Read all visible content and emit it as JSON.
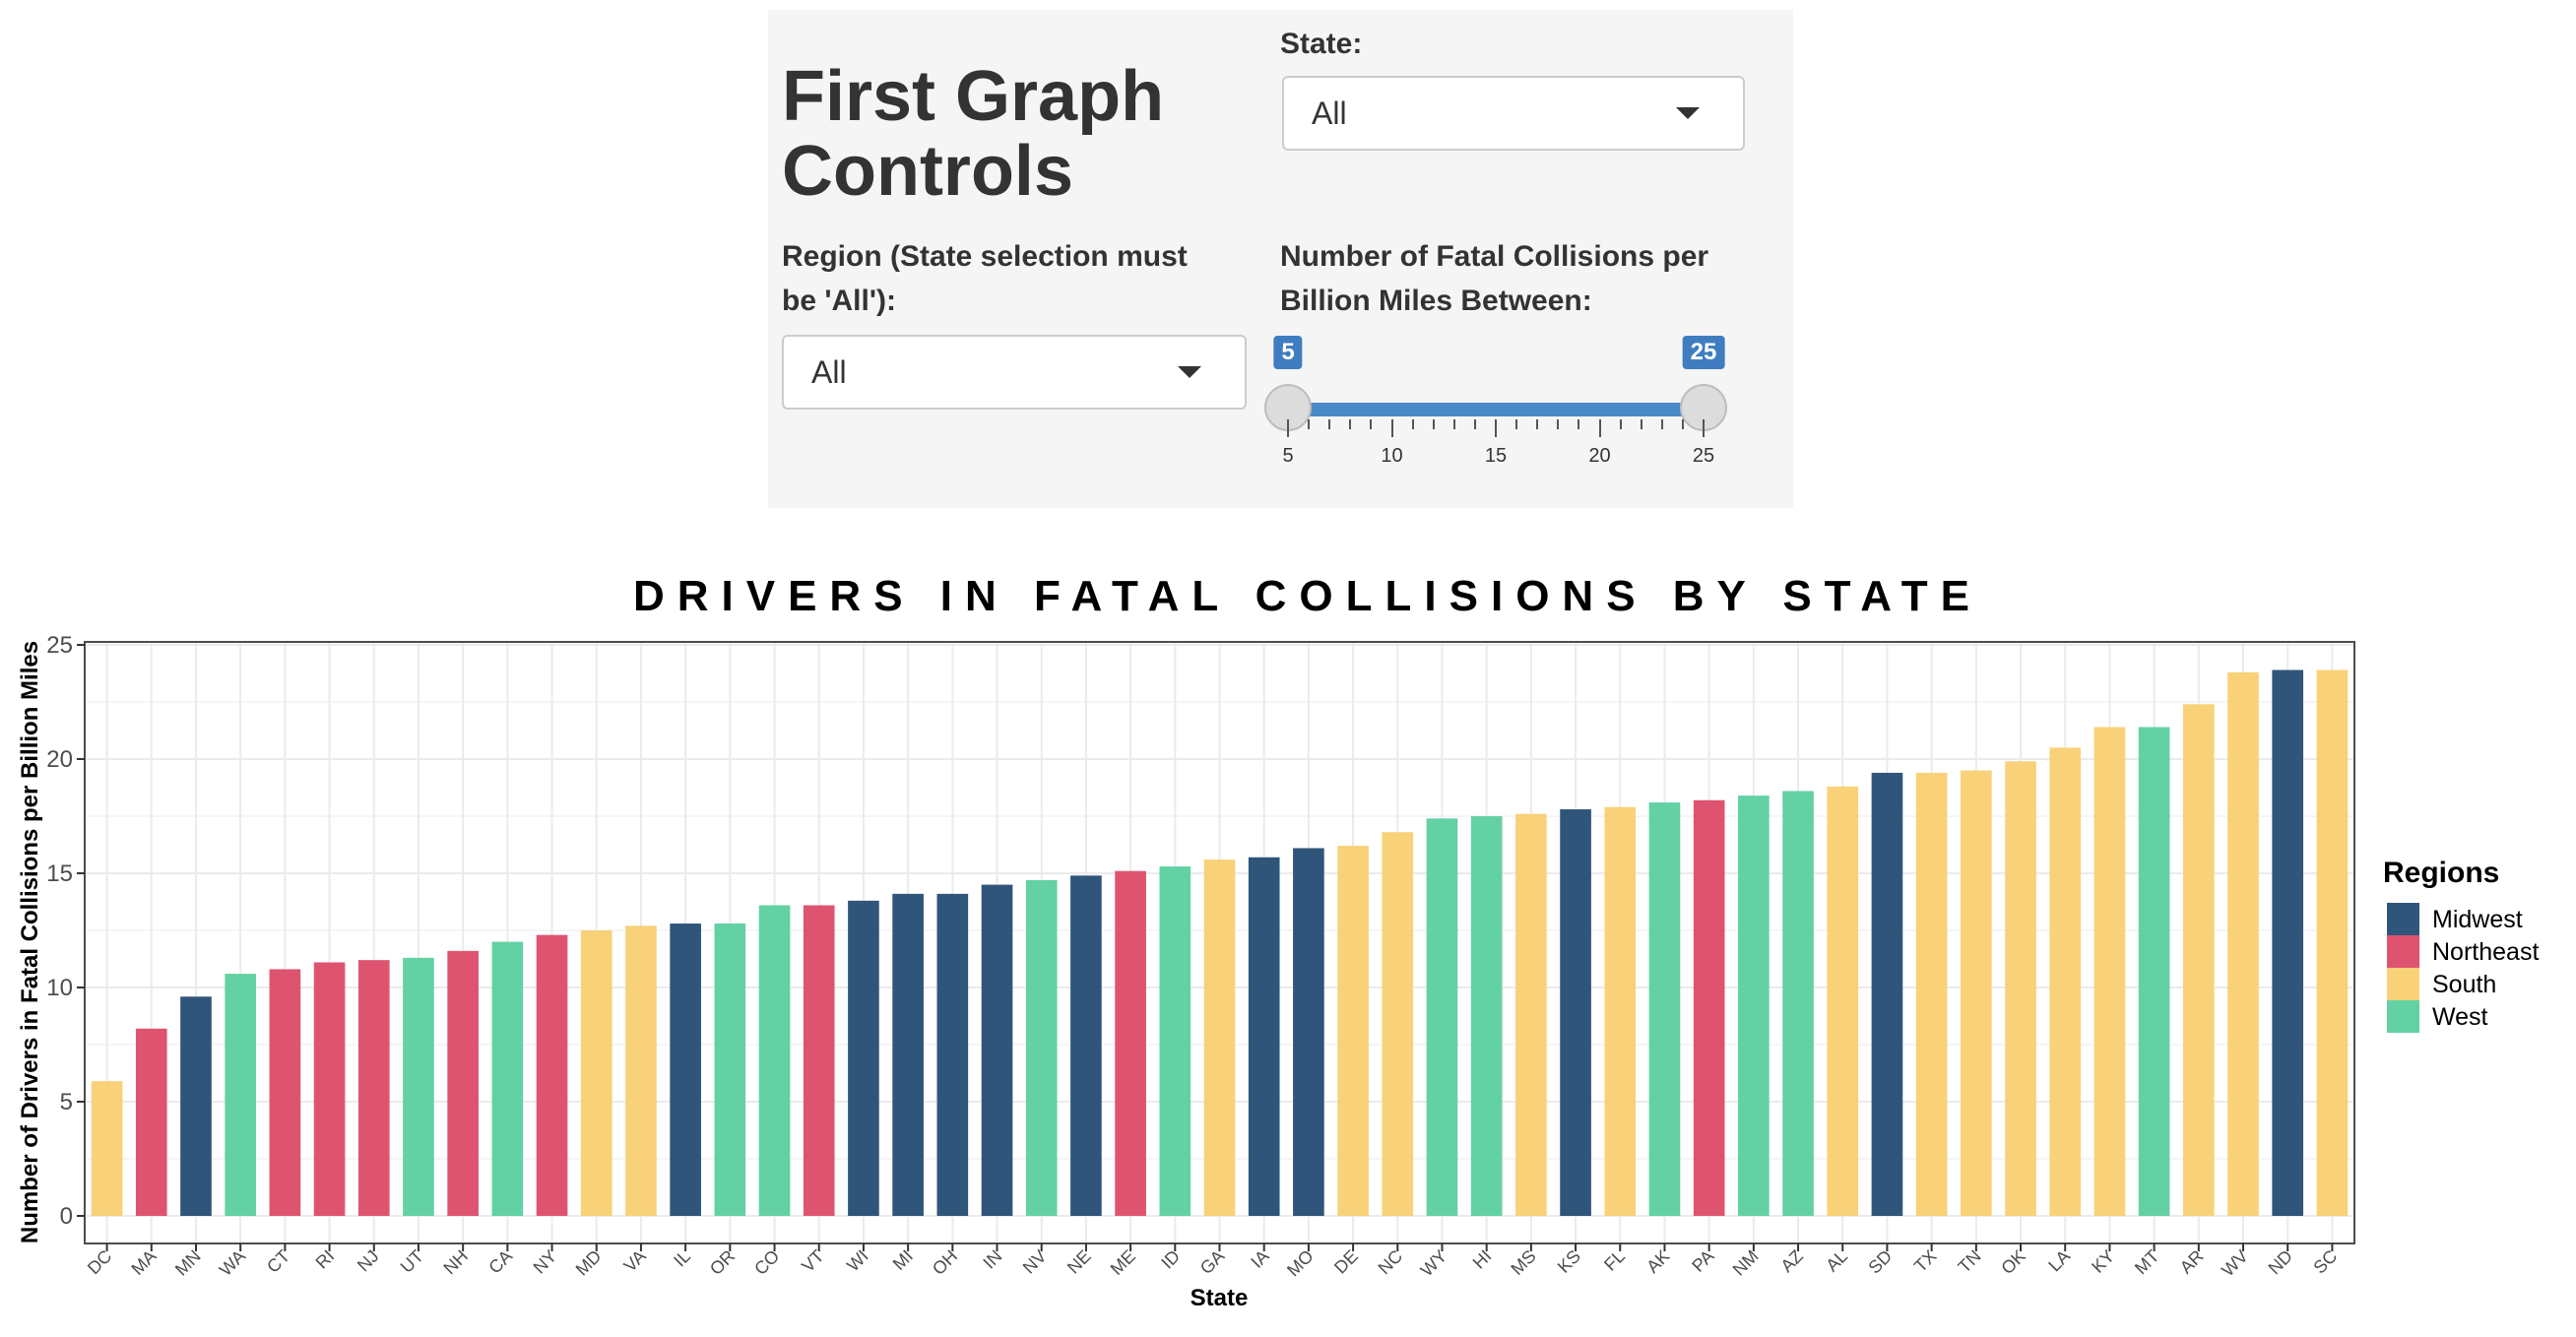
{
  "controls": {
    "title_line1": "First Graph",
    "title_line2": "Controls",
    "state_label": "State:",
    "state_value": "All",
    "region_label_line1": "Region (State selection must",
    "region_label_line2": "be 'All'):",
    "region_value": "All",
    "range_label_line1": "Number of Fatal Collisions per",
    "range_label_line2": "Billion Miles Between:",
    "range_min": 5,
    "range_max": 25,
    "range_low": "5",
    "range_high": "25",
    "range_tick_labels": [
      "5",
      "10",
      "15",
      "20",
      "25"
    ],
    "dropdown_icon": "caret-down-icon"
  },
  "chart_data": {
    "type": "bar",
    "title": "DRIVERS IN FATAL COLLISIONS BY STATE",
    "xlabel": "State",
    "ylabel": "Number of Drivers in Fatal Collisions per Billion Miles",
    "ylim": [
      0,
      25
    ],
    "yticks": [
      "0",
      "5",
      "10",
      "15",
      "20",
      "25"
    ],
    "grid": true,
    "legend_title": "Regions",
    "legend_position": "right",
    "legend": [
      {
        "name": "Midwest",
        "color": "#30557a"
      },
      {
        "name": "Northeast",
        "color": "#de5470"
      },
      {
        "name": "South",
        "color": "#f8d179"
      },
      {
        "name": "West",
        "color": "#63d1a4"
      }
    ],
    "categories": [
      "DC",
      "MA",
      "MN",
      "WA",
      "CT",
      "RI",
      "NJ",
      "UT",
      "NH",
      "CA",
      "NY",
      "MD",
      "VA",
      "IL",
      "OR",
      "CO",
      "VT",
      "WI",
      "MI",
      "OH",
      "IN",
      "NV",
      "NE",
      "ME",
      "ID",
      "GA",
      "IA",
      "MO",
      "DE",
      "NC",
      "WY",
      "HI",
      "MS",
      "KS",
      "FL",
      "AK",
      "PA",
      "NM",
      "AZ",
      "AL",
      "SD",
      "TX",
      "TN",
      "OK",
      "LA",
      "KY",
      "MT",
      "AR",
      "WV",
      "ND",
      "SC"
    ],
    "values": [
      5.9,
      8.2,
      9.6,
      10.6,
      10.8,
      11.1,
      11.2,
      11.3,
      11.6,
      12.0,
      12.3,
      12.5,
      12.7,
      12.8,
      12.8,
      13.6,
      13.6,
      13.8,
      14.1,
      14.1,
      14.5,
      14.7,
      14.9,
      15.1,
      15.3,
      15.6,
      15.7,
      16.1,
      16.2,
      16.8,
      17.4,
      17.5,
      17.6,
      17.8,
      17.9,
      18.1,
      18.2,
      18.4,
      18.6,
      18.8,
      19.4,
      19.4,
      19.5,
      19.9,
      20.5,
      21.4,
      21.4,
      22.4,
      23.8,
      23.9,
      23.9
    ],
    "regions": [
      "South",
      "Northeast",
      "Midwest",
      "West",
      "Northeast",
      "Northeast",
      "Northeast",
      "West",
      "Northeast",
      "West",
      "Northeast",
      "South",
      "South",
      "Midwest",
      "West",
      "West",
      "Northeast",
      "Midwest",
      "Midwest",
      "Midwest",
      "Midwest",
      "West",
      "Midwest",
      "Northeast",
      "West",
      "South",
      "Midwest",
      "Midwest",
      "South",
      "South",
      "West",
      "West",
      "South",
      "Midwest",
      "South",
      "West",
      "Northeast",
      "West",
      "West",
      "South",
      "Midwest",
      "South",
      "South",
      "South",
      "South",
      "South",
      "West",
      "South",
      "South",
      "Midwest",
      "South"
    ]
  }
}
